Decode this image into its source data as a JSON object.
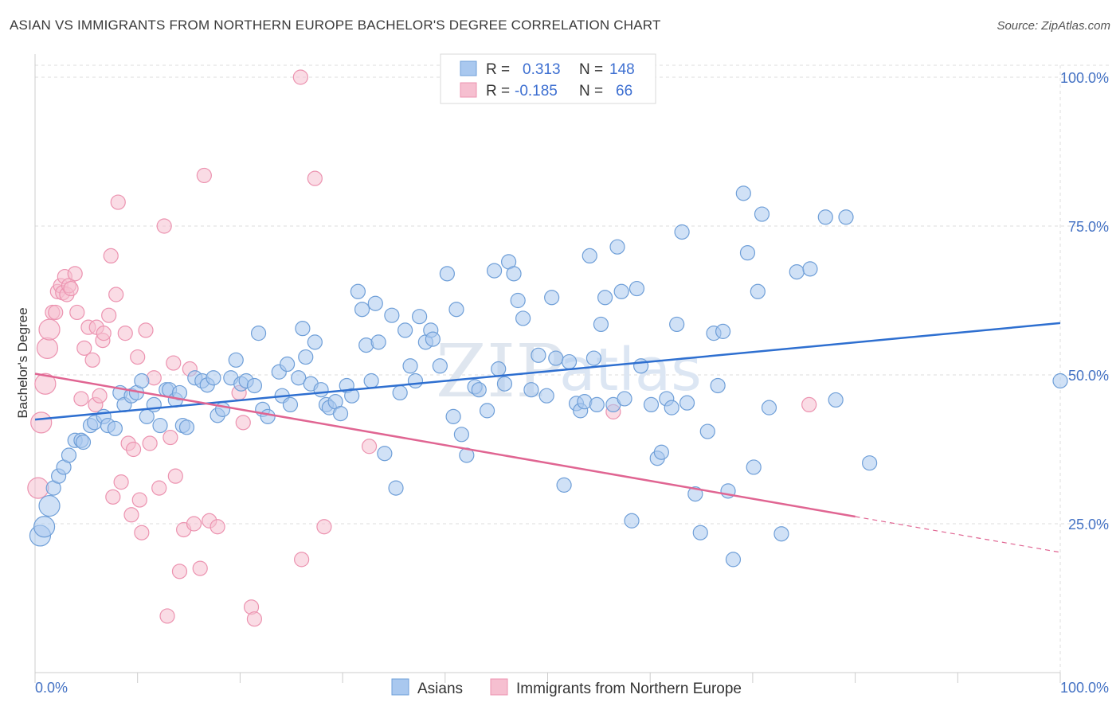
{
  "title": "ASIAN VS IMMIGRANTS FROM NORTHERN EUROPE BACHELOR'S DEGREE CORRELATION CHART",
  "source": "Source: ZipAtlas.com",
  "watermark": {
    "zip": "ZIP",
    "atlas": "atlas"
  },
  "colors": {
    "blue_fill": "#a9c8ef",
    "blue_stroke": "#6f9fd8",
    "blue_line": "#2e6fd0",
    "pink_fill": "#f6bfd0",
    "pink_stroke": "#ec93b0",
    "pink_line": "#e06592",
    "grid": "#dddddd",
    "axis_text": "#4472c4"
  },
  "legend": {
    "r_label": "R =",
    "n_label": "N =",
    "rows": [
      {
        "r": "0.313",
        "n": "148"
      },
      {
        "r": "-0.185",
        "n": "66"
      }
    ]
  },
  "chart_data": {
    "type": "scatter",
    "title": "ASIAN VS IMMIGRANTS FROM NORTHERN EUROPE BACHELOR'S DEGREE CORRELATION CHART",
    "xlabel": "",
    "ylabel": "Bachelor's Degree",
    "xlim": [
      0,
      100
    ],
    "ylim": [
      0,
      102
    ],
    "x_tick_labels": [
      "0.0%",
      "100.0%"
    ],
    "y_ticks": [
      25,
      50,
      75,
      100
    ],
    "y_tick_labels": [
      "25.0%",
      "50.0%",
      "75.0%",
      "100.0%"
    ],
    "legend_position": "bottom-center",
    "series": [
      {
        "name": "Asians",
        "r": 0.313,
        "n": 148,
        "trend": {
          "x0": 0,
          "y0": 42.5,
          "x1": 100,
          "y1": 58.7
        },
        "points": [
          [
            0.5,
            23
          ],
          [
            0.9,
            24.5
          ],
          [
            1.4,
            28
          ],
          [
            1.8,
            31
          ],
          [
            2.3,
            33
          ],
          [
            2.8,
            34.5
          ],
          [
            3.3,
            36.5
          ],
          [
            3.9,
            39
          ],
          [
            4.5,
            39
          ],
          [
            4.7,
            38.7
          ],
          [
            5.4,
            41.5
          ],
          [
            5.8,
            42
          ],
          [
            6.7,
            43
          ],
          [
            7.1,
            41.5
          ],
          [
            7.8,
            41
          ],
          [
            8.3,
            47
          ],
          [
            8.7,
            45
          ],
          [
            9.4,
            46.5
          ],
          [
            9.9,
            47
          ],
          [
            10.4,
            49
          ],
          [
            10.9,
            43
          ],
          [
            11.6,
            45
          ],
          [
            12.2,
            41.5
          ],
          [
            12.8,
            47.5
          ],
          [
            13.1,
            47.5
          ],
          [
            13.7,
            45.8
          ],
          [
            14.1,
            47
          ],
          [
            14.4,
            41.5
          ],
          [
            14.8,
            41.2
          ],
          [
            15.6,
            49.5
          ],
          [
            16.3,
            49
          ],
          [
            16.8,
            48.3
          ],
          [
            17.4,
            49.5
          ],
          [
            17.8,
            43.2
          ],
          [
            18.3,
            44.2
          ],
          [
            19.1,
            49.5
          ],
          [
            19.6,
            52.5
          ],
          [
            20.1,
            48.5
          ],
          [
            20.6,
            49
          ],
          [
            21.4,
            48.2
          ],
          [
            21.8,
            57
          ],
          [
            22.2,
            44.2
          ],
          [
            22.7,
            43
          ],
          [
            23.8,
            50.5
          ],
          [
            24.1,
            46.5
          ],
          [
            24.6,
            51.8
          ],
          [
            24.9,
            45
          ],
          [
            25.7,
            49.5
          ],
          [
            26.1,
            57.8
          ],
          [
            26.4,
            53
          ],
          [
            26.9,
            48.5
          ],
          [
            27.3,
            55.5
          ],
          [
            27.9,
            47.5
          ],
          [
            28.4,
            45
          ],
          [
            28.7,
            44.5
          ],
          [
            29.3,
            45.5
          ],
          [
            29.8,
            43.5
          ],
          [
            30.4,
            48.2
          ],
          [
            30.9,
            46.5
          ],
          [
            31.5,
            64
          ],
          [
            31.9,
            61
          ],
          [
            32.3,
            55
          ],
          [
            32.8,
            49
          ],
          [
            33.2,
            62
          ],
          [
            33.5,
            55.5
          ],
          [
            34.1,
            36.8
          ],
          [
            34.8,
            60
          ],
          [
            35.2,
            31
          ],
          [
            35.6,
            47
          ],
          [
            36.1,
            57.5
          ],
          [
            36.6,
            51.5
          ],
          [
            37.1,
            49
          ],
          [
            37.5,
            59.8
          ],
          [
            38.1,
            55.5
          ],
          [
            38.6,
            57.5
          ],
          [
            38.8,
            56
          ],
          [
            39.5,
            51.5
          ],
          [
            40.2,
            67
          ],
          [
            40.8,
            43
          ],
          [
            41.1,
            61
          ],
          [
            41.6,
            40
          ],
          [
            42.1,
            36.5
          ],
          [
            42.9,
            48
          ],
          [
            43.3,
            47.5
          ],
          [
            44.1,
            44
          ],
          [
            44.8,
            67.5
          ],
          [
            45.2,
            51
          ],
          [
            45.8,
            48.5
          ],
          [
            46.2,
            69
          ],
          [
            46.7,
            67
          ],
          [
            47.1,
            62.5
          ],
          [
            47.6,
            59.5
          ],
          [
            48.4,
            47.5
          ],
          [
            49.1,
            53.3
          ],
          [
            49.9,
            46.5
          ],
          [
            50.4,
            63
          ],
          [
            50.8,
            52.8
          ],
          [
            51.6,
            31.5
          ],
          [
            52.1,
            52.2
          ],
          [
            52.8,
            45.2
          ],
          [
            53.2,
            44
          ],
          [
            53.6,
            45.5
          ],
          [
            54.1,
            70
          ],
          [
            54.5,
            52.8
          ],
          [
            54.8,
            45
          ],
          [
            55.2,
            58.5
          ],
          [
            55.6,
            63
          ],
          [
            56.4,
            45
          ],
          [
            56.8,
            71.5
          ],
          [
            57.2,
            64
          ],
          [
            57.5,
            46
          ],
          [
            58.2,
            25.5
          ],
          [
            58.7,
            64.5
          ],
          [
            59.1,
            51.5
          ],
          [
            60.1,
            45
          ],
          [
            60.7,
            36
          ],
          [
            61.1,
            37
          ],
          [
            61.6,
            46
          ],
          [
            62.1,
            44.5
          ],
          [
            62.6,
            58.5
          ],
          [
            63.1,
            74
          ],
          [
            63.6,
            45.3
          ],
          [
            64.4,
            30
          ],
          [
            64.9,
            23.5
          ],
          [
            65.6,
            40.5
          ],
          [
            66.2,
            57
          ],
          [
            66.6,
            48.2
          ],
          [
            67.1,
            57.3
          ],
          [
            67.6,
            30.5
          ],
          [
            68.1,
            19
          ],
          [
            69.1,
            80.5
          ],
          [
            69.5,
            70.5
          ],
          [
            70.1,
            34.5
          ],
          [
            70.5,
            64
          ],
          [
            70.9,
            77
          ],
          [
            71.6,
            44.5
          ],
          [
            72.8,
            23.3
          ],
          [
            74.3,
            67.3
          ],
          [
            75.6,
            67.8
          ],
          [
            77.1,
            76.5
          ],
          [
            78.1,
            45.8
          ],
          [
            79.1,
            76.5
          ],
          [
            81.4,
            35.2
          ],
          [
            100,
            49
          ]
        ]
      },
      {
        "name": "Immigrants from Northern Europe",
        "r": -0.185,
        "n": 66,
        "trend": {
          "x0": 0,
          "y0": 50.2,
          "x1": 80,
          "y1": 26.2
        },
        "trend_dashed": {
          "x0": 80,
          "y0": 26.2,
          "x1": 100,
          "y1": 20.2
        },
        "points": [
          [
            0.3,
            31
          ],
          [
            0.6,
            42
          ],
          [
            1,
            48.5
          ],
          [
            1.2,
            54.5
          ],
          [
            1.4,
            57.6
          ],
          [
            1.7,
            60.5
          ],
          [
            2,
            60.5
          ],
          [
            2.2,
            64
          ],
          [
            2.5,
            65
          ],
          [
            2.7,
            63.8
          ],
          [
            2.9,
            66.5
          ],
          [
            3.1,
            63.5
          ],
          [
            3.3,
            65
          ],
          [
            3.5,
            64.5
          ],
          [
            3.9,
            67
          ],
          [
            4.1,
            60.5
          ],
          [
            4.5,
            46
          ],
          [
            4.8,
            54.5
          ],
          [
            5.2,
            58
          ],
          [
            5.6,
            52.5
          ],
          [
            5.9,
            45
          ],
          [
            6,
            58
          ],
          [
            6.3,
            46.5
          ],
          [
            6.6,
            55.8
          ],
          [
            6.7,
            57
          ],
          [
            7.2,
            60
          ],
          [
            7.4,
            70
          ],
          [
            7.6,
            29.5
          ],
          [
            7.9,
            63.5
          ],
          [
            8.1,
            79
          ],
          [
            8.4,
            32
          ],
          [
            8.8,
            57
          ],
          [
            9.1,
            38.5
          ],
          [
            9.4,
            26.5
          ],
          [
            9.6,
            37.5
          ],
          [
            10,
            53
          ],
          [
            10.2,
            29
          ],
          [
            10.4,
            23.5
          ],
          [
            10.8,
            57.5
          ],
          [
            11.2,
            38.5
          ],
          [
            11.6,
            49.5
          ],
          [
            12.1,
            31
          ],
          [
            12.6,
            75
          ],
          [
            12.9,
            9.5
          ],
          [
            13.2,
            39.5
          ],
          [
            13.5,
            52
          ],
          [
            13.7,
            33
          ],
          [
            14.1,
            17
          ],
          [
            14.5,
            24
          ],
          [
            15.1,
            51
          ],
          [
            15.5,
            25
          ],
          [
            16.1,
            17.5
          ],
          [
            16.5,
            83.5
          ],
          [
            17,
            25.5
          ],
          [
            17.8,
            24.5
          ],
          [
            19.9,
            47
          ],
          [
            20.3,
            42
          ],
          [
            21.1,
            11
          ],
          [
            21.4,
            9
          ],
          [
            25.9,
            100
          ],
          [
            26,
            19
          ],
          [
            27.3,
            83
          ],
          [
            28.2,
            24.5
          ],
          [
            32.6,
            38
          ],
          [
            56.4,
            43.8
          ],
          [
            75.5,
            45
          ]
        ]
      }
    ]
  },
  "bottom_legend": {
    "items": [
      "Asians",
      "Immigrants from Northern Europe"
    ]
  }
}
